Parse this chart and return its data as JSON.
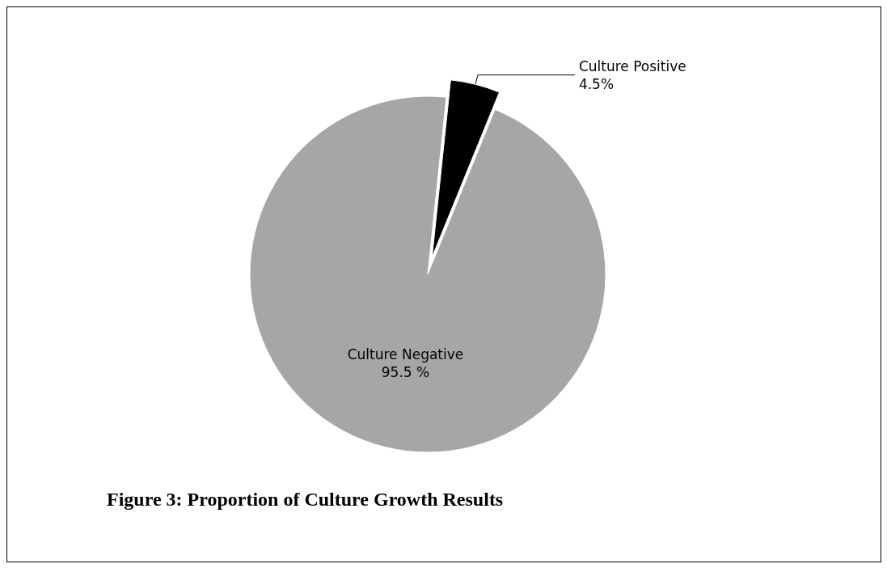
{
  "chart_data": {
    "type": "pie",
    "title": "Figure 3: Proportion of Culture Growth Results",
    "categories": [
      "Culture Positive",
      "Culture Negative"
    ],
    "values": [
      4.5,
      95.5
    ],
    "colors": [
      "#000000",
      "#a6a6a6"
    ],
    "value_labels": [
      "4.5%",
      "95.5 %"
    ]
  }
}
